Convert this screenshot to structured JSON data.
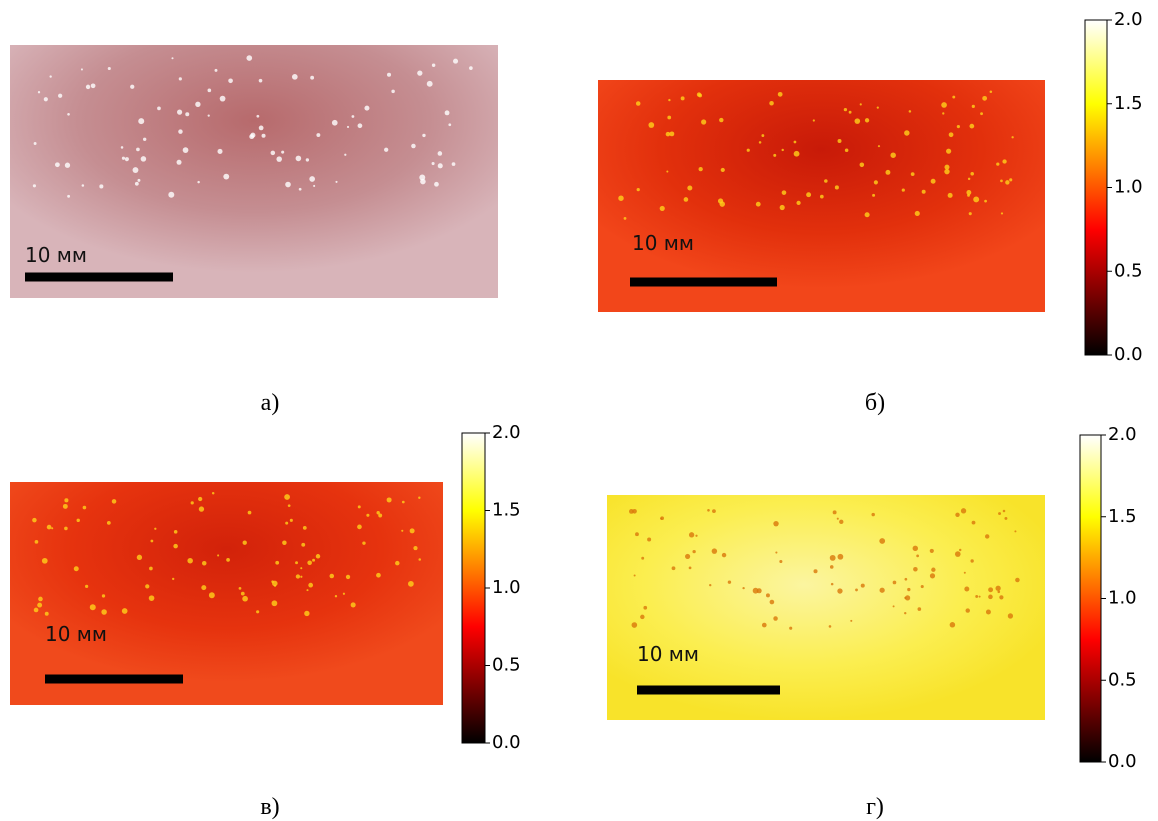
{
  "panels": [
    {
      "caption": "а)",
      "scale_label": "10 мм"
    },
    {
      "caption": "б)",
      "scale_label": "10 мм",
      "colorbar": {
        "lim": [
          0,
          2
        ],
        "ticks": [
          {
            "value": 0,
            "label": "0.0"
          },
          {
            "value": 0.5,
            "label": "0.5"
          },
          {
            "value": 1,
            "label": "1.0"
          },
          {
            "value": 1.5,
            "label": "1.5"
          },
          {
            "value": 2,
            "label": "2.0"
          }
        ]
      }
    },
    {
      "caption": "в)",
      "scale_label": "10 мм",
      "colorbar": {
        "lim": [
          0,
          2
        ],
        "ticks": [
          {
            "value": 0,
            "label": "0.0"
          },
          {
            "value": 0.5,
            "label": "0.5"
          },
          {
            "value": 1,
            "label": "1.0"
          },
          {
            "value": 1.5,
            "label": "1.5"
          },
          {
            "value": 2,
            "label": "2.0"
          }
        ]
      }
    },
    {
      "caption": "г)",
      "scale_label": "10 мм",
      "colorbar": {
        "lim": [
          0,
          2
        ],
        "ticks": [
          {
            "value": 0,
            "label": "0.0"
          },
          {
            "value": 0.5,
            "label": "0.5"
          },
          {
            "value": 1,
            "label": "1.0"
          },
          {
            "value": 1.5,
            "label": "1.5"
          },
          {
            "value": 2,
            "label": "2.0"
          }
        ]
      }
    }
  ]
}
